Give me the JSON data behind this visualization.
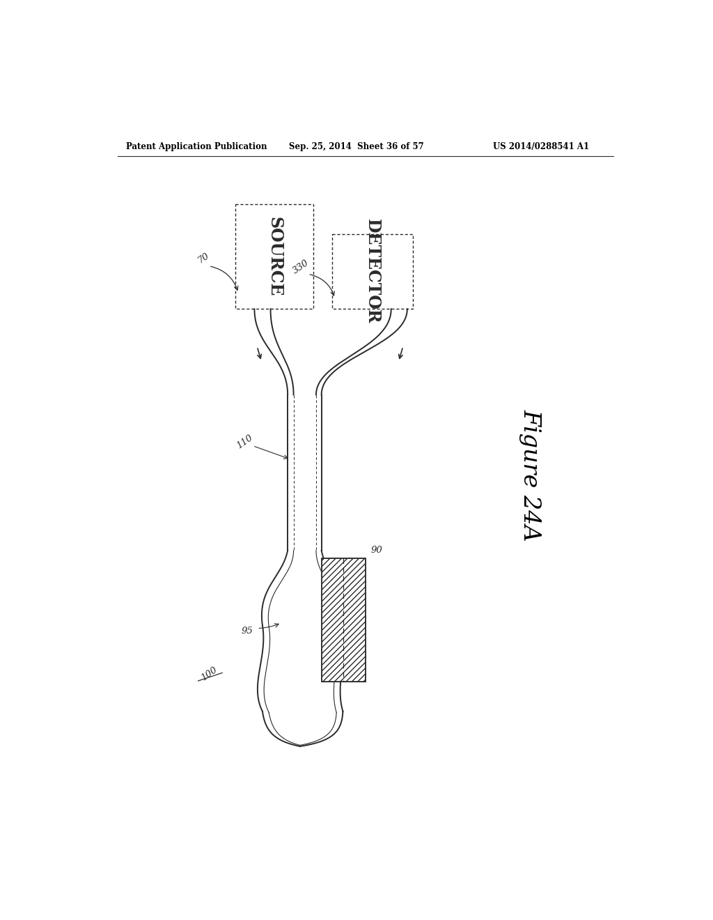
{
  "title": "Figure 24A",
  "header_left": "Patent Application Publication",
  "header_mid": "Sep. 25, 2014  Sheet 36 of 57",
  "header_right": "US 2014/0288541 A1",
  "background_color": "#ffffff",
  "line_color": "#2a2a2a",
  "label_70": "70",
  "label_330": "330",
  "label_110": "110",
  "label_90": "90",
  "label_95": "95",
  "label_100": "100",
  "source_text": "SOURCE",
  "detector_text": "DETECTOR"
}
